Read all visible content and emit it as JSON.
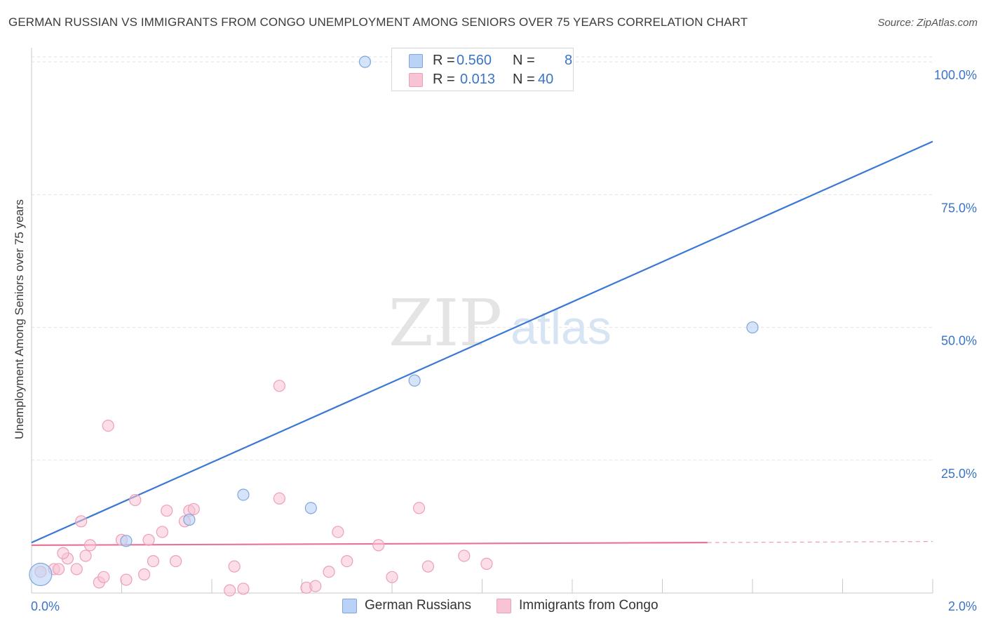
{
  "title": "GERMAN RUSSIAN VS IMMIGRANTS FROM CONGO UNEMPLOYMENT AMONG SENIORS OVER 75 YEARS CORRELATION CHART",
  "source": "Source: ZipAtlas.com",
  "watermark": {
    "zip": "ZIP",
    "atlas": "atlas"
  },
  "colors": {
    "blue": "#3a78d4",
    "blue_fill": "#b9d2f5",
    "pink": "#e8729a",
    "pink_fill": "#f8c3d3",
    "axis_text": "#3a74c9",
    "grid": "#e2e2e2"
  },
  "legend": {
    "rows": [
      {
        "r_label": "R =",
        "r_value": "0.560",
        "n_label": "N =",
        "n_value": "8"
      },
      {
        "r_label": "R =",
        "r_value": "0.013",
        "n_label": "N =",
        "n_value": "40"
      }
    ]
  },
  "bottom_legend": {
    "series1": "German Russians",
    "series2": "Immigrants from Congo"
  },
  "chart_data": {
    "type": "scatter",
    "title": "GERMAN RUSSIAN VS IMMIGRANTS FROM CONGO UNEMPLOYMENT AMONG SENIORS OVER 75 YEARS CORRELATION CHART",
    "xlabel": "",
    "ylabel": "Unemployment Among Seniors over 75 years",
    "xlim": [
      0,
      2.0
    ],
    "ylim": [
      0,
      102
    ],
    "x_tick_labels": [
      "0.0%",
      "2.0%"
    ],
    "y_ticks": [
      25,
      50,
      75,
      100
    ],
    "y_tick_labels": [
      "25.0%",
      "50.0%",
      "75.0%",
      "100.0%"
    ],
    "series": [
      {
        "name": "German Russians",
        "points": [
          [
            0.02,
            3.5
          ],
          [
            0.21,
            9.8
          ],
          [
            0.35,
            13.8
          ],
          [
            0.47,
            18.5
          ],
          [
            0.62,
            16.0
          ],
          [
            0.74,
            100.0
          ],
          [
            0.85,
            40.0
          ],
          [
            1.6,
            50.0
          ]
        ],
        "trend": {
          "x": [
            0.0,
            2.0
          ],
          "y": [
            9.5,
            85.0
          ]
        }
      },
      {
        "name": "Immigrants from Congo",
        "points": [
          [
            0.02,
            4.0
          ],
          [
            0.05,
            4.5
          ],
          [
            0.06,
            4.5
          ],
          [
            0.08,
            6.5
          ],
          [
            0.07,
            7.5
          ],
          [
            0.1,
            4.5
          ],
          [
            0.11,
            13.5
          ],
          [
            0.12,
            7.0
          ],
          [
            0.13,
            9.0
          ],
          [
            0.15,
            2.0
          ],
          [
            0.16,
            3.0
          ],
          [
            0.17,
            31.5
          ],
          [
            0.2,
            10.0
          ],
          [
            0.21,
            2.5
          ],
          [
            0.23,
            17.5
          ],
          [
            0.25,
            3.5
          ],
          [
            0.26,
            10.0
          ],
          [
            0.27,
            6.0
          ],
          [
            0.29,
            11.5
          ],
          [
            0.3,
            15.5
          ],
          [
            0.32,
            6.0
          ],
          [
            0.34,
            13.5
          ],
          [
            0.35,
            15.5
          ],
          [
            0.36,
            15.8
          ],
          [
            0.44,
            0.5
          ],
          [
            0.45,
            5.0
          ],
          [
            0.47,
            0.8
          ],
          [
            0.55,
            39.0
          ],
          [
            0.55,
            17.8
          ],
          [
            0.61,
            1.0
          ],
          [
            0.63,
            1.3
          ],
          [
            0.66,
            4.0
          ],
          [
            0.68,
            11.5
          ],
          [
            0.7,
            6.0
          ],
          [
            0.77,
            9.0
          ],
          [
            0.8,
            3.0
          ],
          [
            0.86,
            16.0
          ],
          [
            0.88,
            5.0
          ],
          [
            0.96,
            7.0
          ],
          [
            1.01,
            5.5
          ]
        ],
        "trend": {
          "x": [
            0.0,
            1.5
          ],
          "y": [
            9.0,
            9.5
          ]
        },
        "trend_extension": {
          "x": [
            1.5,
            2.0
          ],
          "y": [
            9.5,
            9.7
          ]
        }
      }
    ]
  }
}
